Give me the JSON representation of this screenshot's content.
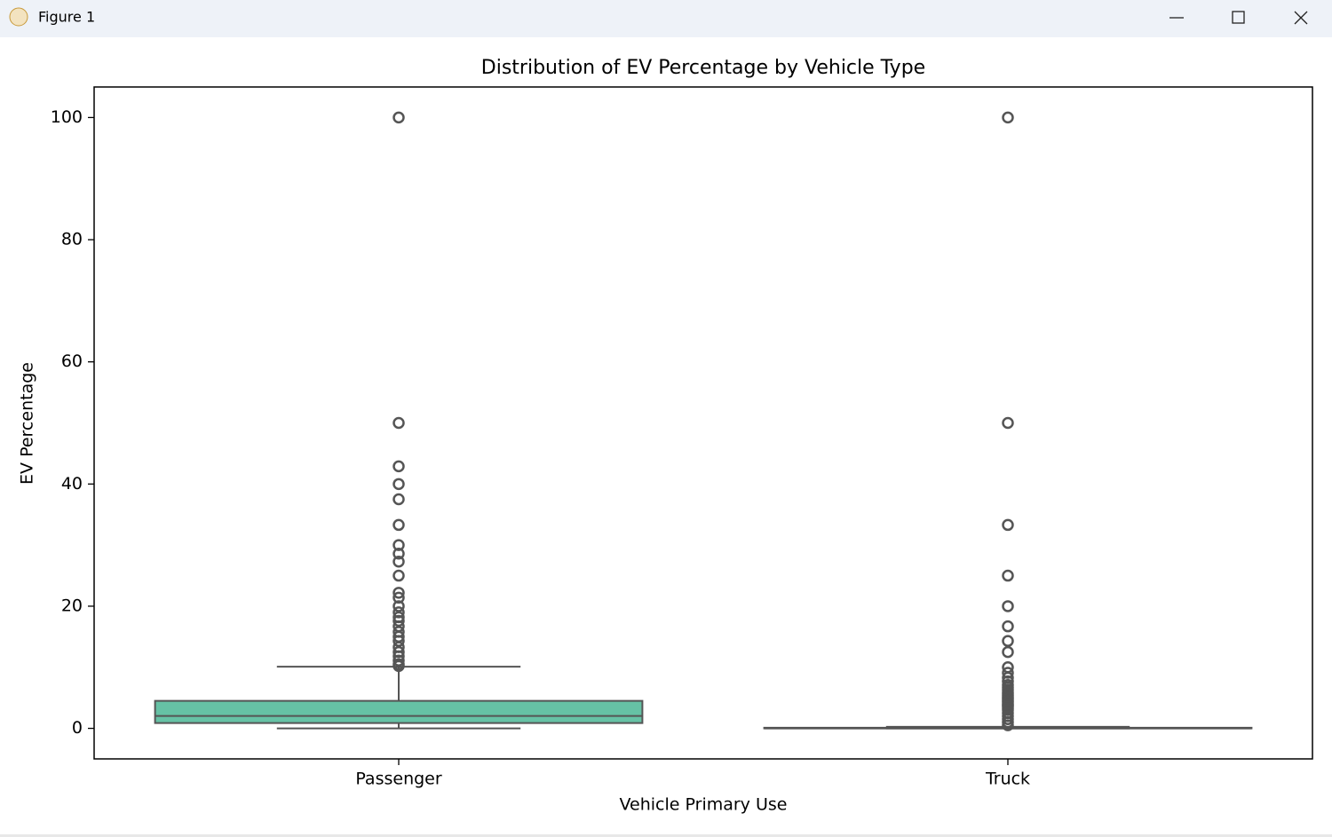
{
  "window": {
    "title": "Figure 1"
  },
  "chart_data": {
    "type": "box",
    "title": "Distribution of EV Percentage by Vehicle Type",
    "x_label": "Vehicle Primary Use",
    "y_label": "EV Percentage",
    "categories": [
      "Passenger",
      "Truck"
    ],
    "colors": [
      "#66c2a5",
      "#fc8d62"
    ],
    "boxes": [
      {
        "whislo": 0,
        "q1": 0.87,
        "med": 2.03,
        "q3": 4.5,
        "whishi": 10.1,
        "fliers": [
          100,
          50,
          42.9,
          40,
          37.5,
          33.3,
          30,
          28.6,
          27.3,
          25,
          22.2,
          21.4,
          20,
          19,
          18.2,
          17.6,
          16.7,
          15.8,
          15,
          14.3,
          13.3,
          12.5,
          11.8,
          11.1,
          10.5,
          10.2
        ]
      },
      {
        "whislo": 0,
        "q1": 0,
        "med": 0,
        "q3": 0.1,
        "whishi": 0.25,
        "fliers": [
          100,
          50,
          33.3,
          25,
          20,
          16.7,
          14.3,
          12.5,
          10,
          9.1,
          8.3,
          7.7,
          7.1,
          6.7,
          6.3,
          5.9,
          5.6,
          5.3,
          5,
          4.8,
          4.5,
          4.3,
          4,
          3.8,
          3.6,
          3.3,
          3,
          2.5,
          2,
          1.5,
          1,
          0.5
        ]
      }
    ],
    "ylim": [
      -5,
      105
    ],
    "yticks": [
      0,
      20,
      40,
      60,
      80,
      100
    ],
    "grid": false
  }
}
